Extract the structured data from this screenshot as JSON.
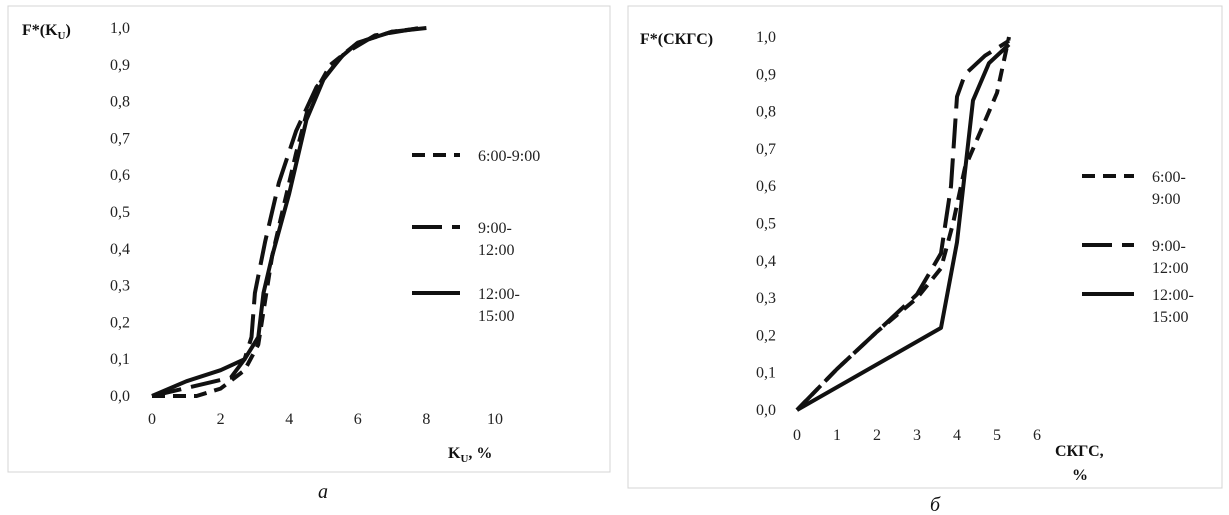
{
  "chart_data": [
    {
      "type": "line",
      "panel_label": "a",
      "ylabel": {
        "main": "F*(K",
        "sub": "U",
        "tail": ")"
      },
      "xlabel": {
        "main": "K",
        "sub": "U",
        "tail": ", %"
      },
      "xlim": [
        0,
        10
      ],
      "ylim": [
        0,
        1
      ],
      "x_ticks": [
        "0",
        "2",
        "4",
        "6",
        "8",
        "10"
      ],
      "y_ticks": [
        "0,0",
        "0,1",
        "0,2",
        "0,3",
        "0,4",
        "0,5",
        "0,6",
        "0,7",
        "0,8",
        "0,9",
        "1,0"
      ],
      "grid": false,
      "legend_position": "right",
      "series": [
        {
          "name": "6:00-9:00",
          "name_lines": [
            "6:00-9:00"
          ],
          "style": "dashed",
          "x": [
            0,
            1.3,
            2,
            2.7,
            3.1,
            3.3,
            3.5,
            3.8,
            4.2,
            4.6,
            5.2,
            6,
            7,
            7.9
          ],
          "y": [
            0,
            0,
            0.02,
            0.07,
            0.14,
            0.26,
            0.38,
            0.5,
            0.66,
            0.8,
            0.9,
            0.96,
            0.99,
            1.0
          ]
        },
        {
          "name": "9:00-12:00",
          "name_lines": [
            "9:00-",
            "12:00"
          ],
          "style": "longdash",
          "x": [
            0,
            2.3,
            2.7,
            2.9,
            3.0,
            3.3,
            3.7,
            4.2,
            4.8,
            5.6,
            6.5,
            7.8
          ],
          "y": [
            0,
            0.05,
            0.1,
            0.16,
            0.28,
            0.42,
            0.58,
            0.72,
            0.84,
            0.93,
            0.98,
            1.0
          ]
        },
        {
          "name": "12:00-15:00",
          "name_lines": [
            "12:00-",
            "15:00"
          ],
          "style": "solid",
          "x": [
            0,
            1,
            2,
            2.7,
            3.1,
            3.25,
            3.5,
            4,
            4.5,
            5,
            5.5,
            6,
            7,
            8
          ],
          "y": [
            0,
            0.04,
            0.07,
            0.1,
            0.16,
            0.28,
            0.38,
            0.55,
            0.75,
            0.86,
            0.92,
            0.96,
            0.99,
            1.0
          ]
        }
      ]
    },
    {
      "type": "line",
      "panel_label": "б",
      "ylabel": {
        "main": "F*(СКГС)"
      },
      "xlabel": {
        "lines": [
          "СКГС,",
          "%"
        ]
      },
      "xlim": [
        0,
        6
      ],
      "ylim": [
        0,
        1
      ],
      "x_ticks": [
        "0",
        "1",
        "2",
        "3",
        "4",
        "5",
        "6"
      ],
      "y_ticks": [
        "0,0",
        "0,1",
        "0,2",
        "0,3",
        "0,4",
        "0,5",
        "0,6",
        "0,7",
        "0,8",
        "0,9",
        "1,0"
      ],
      "grid": false,
      "legend_position": "right",
      "series": [
        {
          "name": "6:00-9:00",
          "name_lines": [
            "6:00-",
            "9:00"
          ],
          "style": "dashed",
          "x": [
            0,
            1,
            2,
            3,
            3.6,
            3.9,
            4.2,
            4.6,
            5.0,
            5.3
          ],
          "y": [
            0,
            0.11,
            0.21,
            0.3,
            0.38,
            0.5,
            0.65,
            0.75,
            0.85,
            1.0
          ]
        },
        {
          "name": "9:00-12:00",
          "name_lines": [
            "9:00-",
            "12:00"
          ],
          "style": "longdash",
          "x": [
            0,
            1,
            2,
            3,
            3.6,
            3.85,
            4.0,
            4.2,
            4.7,
            5.3
          ],
          "y": [
            0,
            0.11,
            0.21,
            0.31,
            0.42,
            0.6,
            0.84,
            0.9,
            0.95,
            0.99
          ]
        },
        {
          "name": "12:00-15:00",
          "name_lines": [
            "12:00-",
            "15:00"
          ],
          "style": "solid",
          "x": [
            0,
            3.6,
            4.0,
            4.4,
            4.8,
            5.3
          ],
          "y": [
            0,
            0.22,
            0.45,
            0.83,
            0.93,
            0.98
          ]
        }
      ]
    }
  ]
}
